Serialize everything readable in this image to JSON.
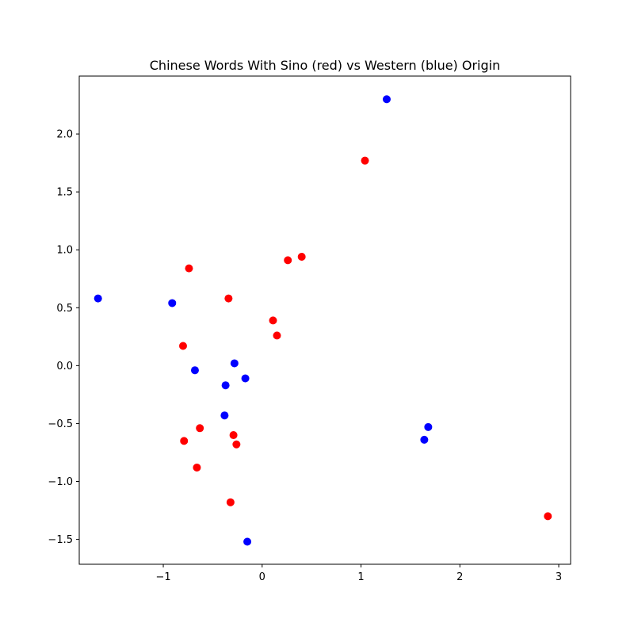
{
  "chart_data": {
    "type": "scatter",
    "title": "Chinese Words With Sino (red) vs Western (blue) Origin",
    "xlabel": "",
    "ylabel": "",
    "xlim": [
      -1.85,
      3.12
    ],
    "ylim": [
      -1.715,
      2.5
    ],
    "grid": false,
    "x_ticks": [
      {
        "value": -1,
        "label": "−1"
      },
      {
        "value": 0,
        "label": "0"
      },
      {
        "value": 1,
        "label": "1"
      },
      {
        "value": 2,
        "label": "2"
      },
      {
        "value": 3,
        "label": "3"
      }
    ],
    "y_ticks": [
      {
        "value": -1.5,
        "label": "−1.5"
      },
      {
        "value": -1.0,
        "label": "−1.0"
      },
      {
        "value": -0.5,
        "label": "−0.5"
      },
      {
        "value": 0.0,
        "label": "0.0"
      },
      {
        "value": 0.5,
        "label": "0.5"
      },
      {
        "value": 1.0,
        "label": "1.0"
      },
      {
        "value": 1.5,
        "label": "1.5"
      },
      {
        "value": 2.0,
        "label": "2.0"
      }
    ],
    "series": [
      {
        "color": "#ff0000",
        "points": [
          {
            "x": 1.04,
            "y": 1.77
          },
          {
            "x": 0.4,
            "y": 0.94
          },
          {
            "x": 0.26,
            "y": 0.91
          },
          {
            "x": -0.74,
            "y": 0.84
          },
          {
            "x": -0.34,
            "y": 0.58
          },
          {
            "x": 0.11,
            "y": 0.39
          },
          {
            "x": 0.15,
            "y": 0.26
          },
          {
            "x": -0.8,
            "y": 0.17
          },
          {
            "x": -0.63,
            "y": -0.54
          },
          {
            "x": -0.29,
            "y": -0.6
          },
          {
            "x": -0.79,
            "y": -0.65
          },
          {
            "x": -0.26,
            "y": -0.68
          },
          {
            "x": -0.66,
            "y": -0.88
          },
          {
            "x": -0.32,
            "y": -1.18
          },
          {
            "x": 2.89,
            "y": -1.3
          }
        ]
      },
      {
        "color": "#0000ff",
        "points": [
          {
            "x": 1.26,
            "y": 2.3
          },
          {
            "x": -1.66,
            "y": 0.58
          },
          {
            "x": -0.91,
            "y": 0.54
          },
          {
            "x": -0.28,
            "y": 0.02
          },
          {
            "x": -0.68,
            "y": -0.04
          },
          {
            "x": -0.17,
            "y": -0.11
          },
          {
            "x": -0.37,
            "y": -0.17
          },
          {
            "x": -0.38,
            "y": -0.43
          },
          {
            "x": 1.68,
            "y": -0.53
          },
          {
            "x": 1.64,
            "y": -0.64
          },
          {
            "x": -0.15,
            "y": -1.52
          }
        ]
      }
    ]
  }
}
